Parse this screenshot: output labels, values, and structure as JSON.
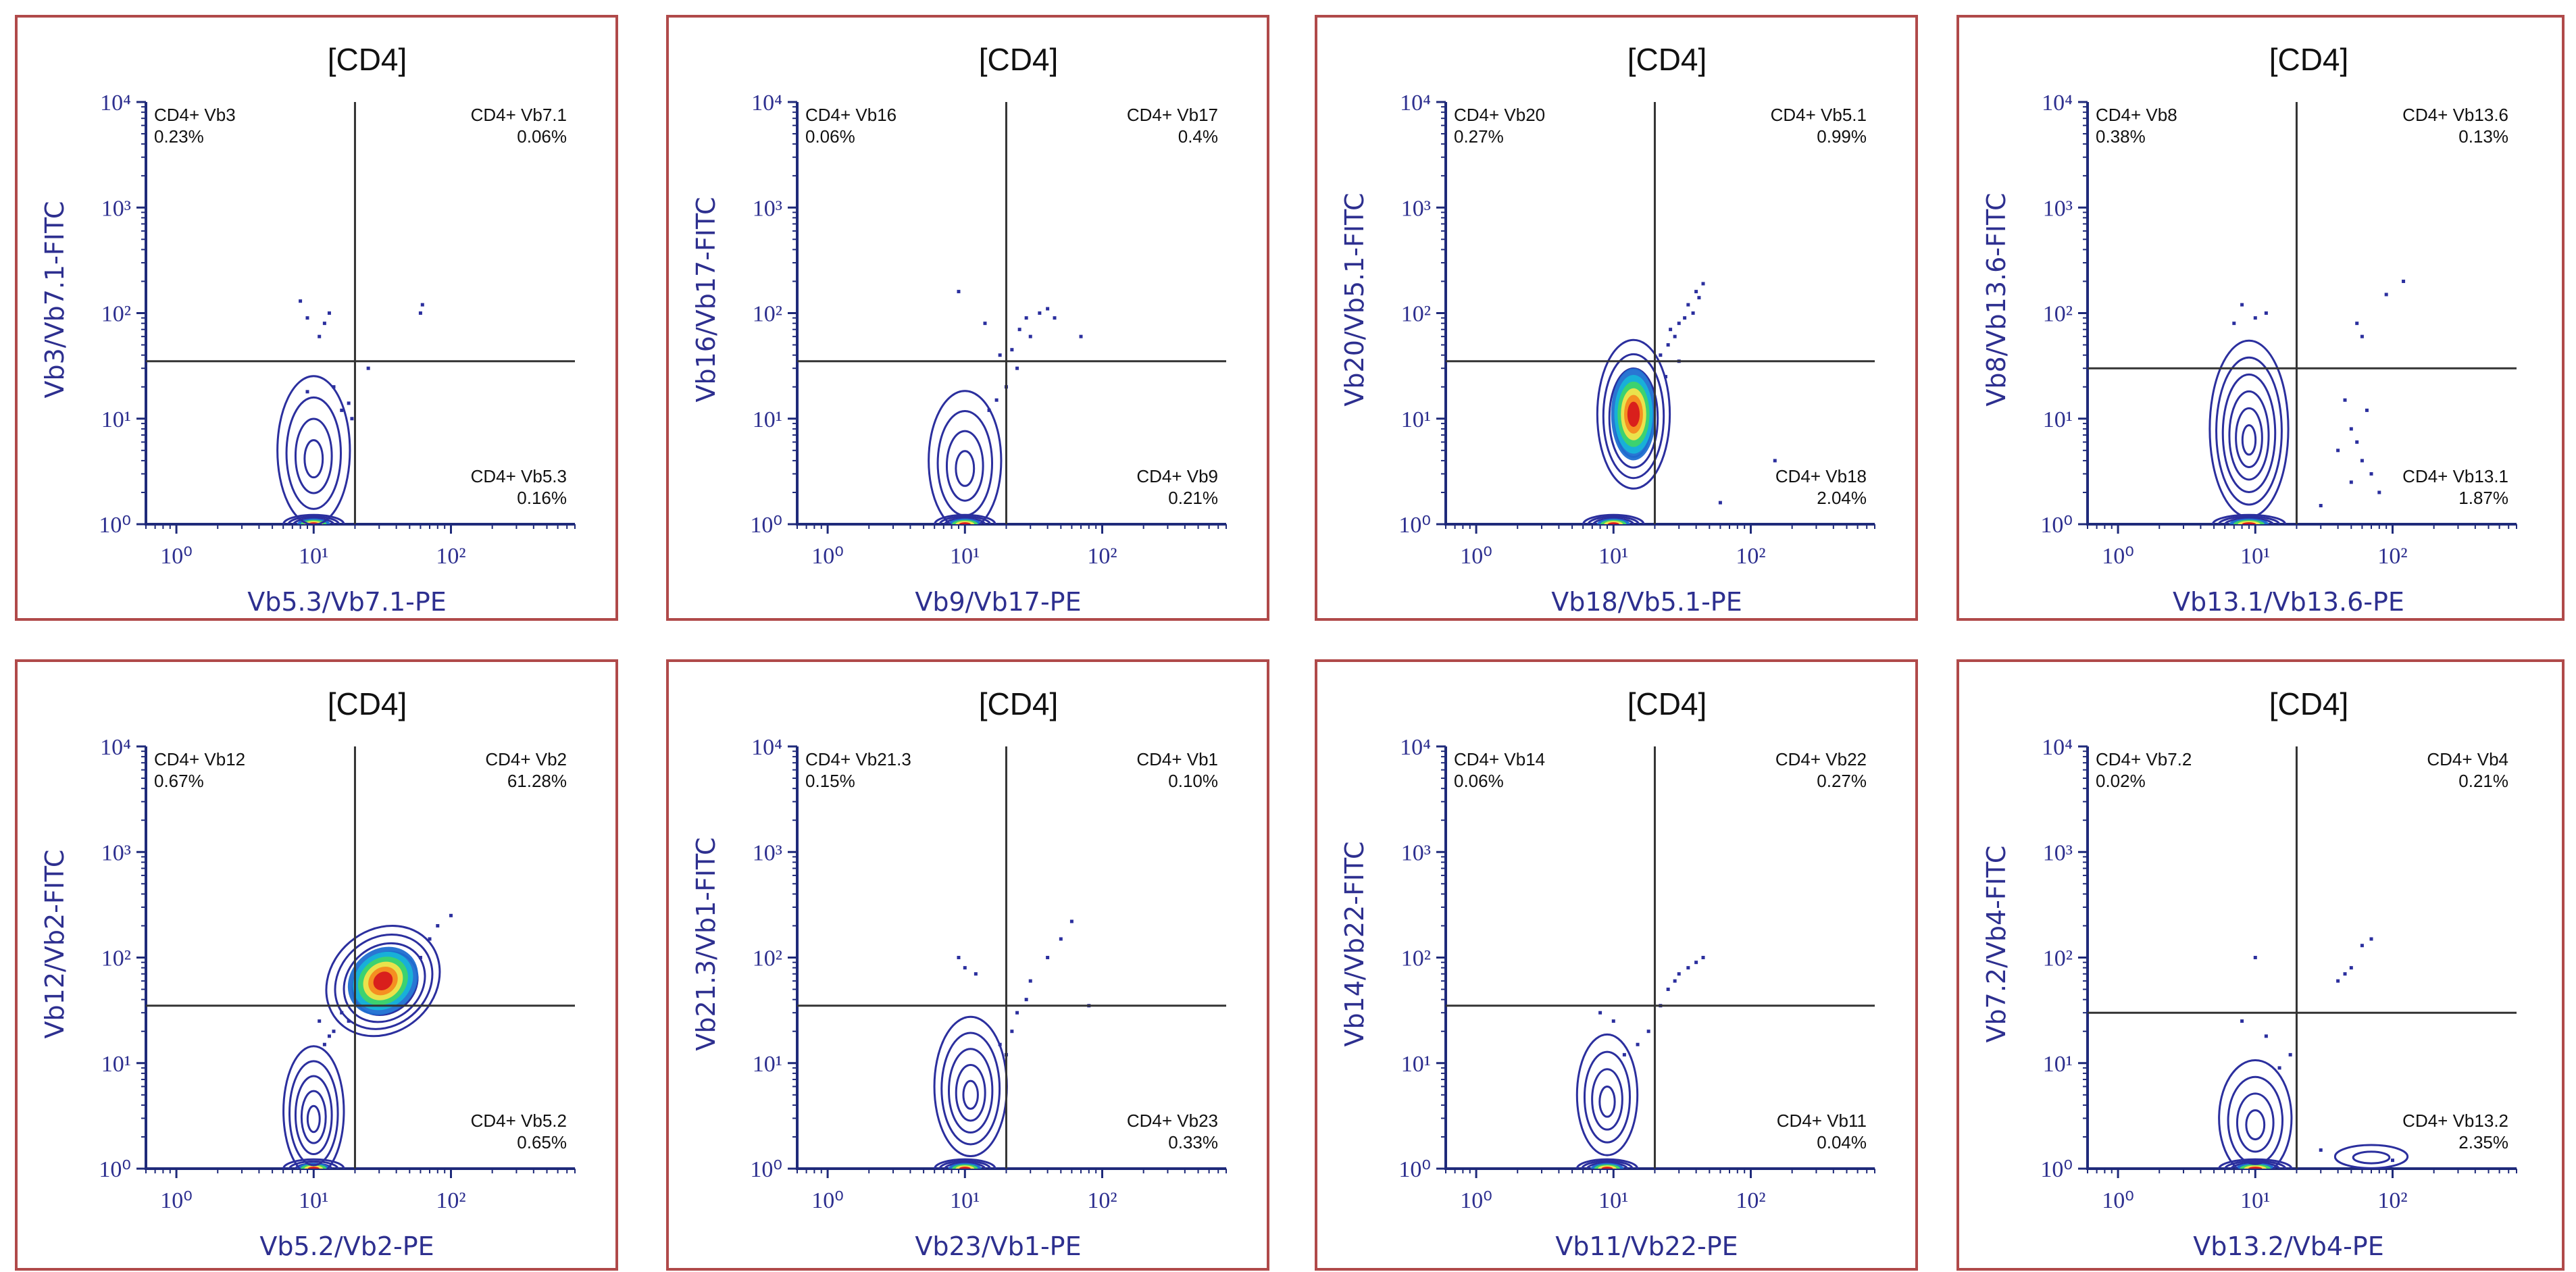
{
  "figure": {
    "colors": {
      "frame": "#b04a4a",
      "axis": "#1f2a7a",
      "axis_label": "#2d2f8f",
      "contour": "#2b2f9e",
      "quadrant_line": "#333333",
      "density_palette": [
        "#2b2f9e",
        "#1f6fd1",
        "#17b3d8",
        "#3ed46a",
        "#f3e34a",
        "#f58a1f",
        "#d7191c"
      ]
    }
  },
  "chart_data": [
    {
      "type": "contour",
      "title": "[CD4]",
      "xlabel": "Vb5.3/Vb7.1-PE",
      "ylabel": "Vb3/Vb7.1-FITC",
      "xscale": "log",
      "yscale": "log",
      "xlim": [
        0.6,
        800
      ],
      "ylim": [
        1,
        10000
      ],
      "xticks": [
        "10⁰",
        "10¹",
        "10²"
      ],
      "yticks": [
        "10⁰",
        "10¹",
        "10²",
        "10³",
        "10⁴"
      ],
      "gate": {
        "x": 20,
        "y": 35
      },
      "quadrants": {
        "ul": {
          "label": "CD4+ Vb3",
          "pct": "0.23%"
        },
        "ur": {
          "label": "CD4+ Vb7.1",
          "pct": "0.06%"
        },
        "lr": {
          "label": "CD4+ Vb5.3",
          "pct": "0.16%"
        }
      },
      "populations": [
        {
          "x": 10,
          "y": 1.0,
          "sx": 0.1,
          "sy": 0.04,
          "levels": 6
        },
        {
          "x": 10,
          "y": 5.0,
          "sx": 0.12,
          "sy": 0.32,
          "levels": 4
        }
      ],
      "dots": [
        [
          8,
          130
        ],
        [
          9,
          90
        ],
        [
          12,
          80
        ],
        [
          13,
          100
        ],
        [
          11,
          60
        ],
        [
          60,
          100
        ],
        [
          62,
          120
        ],
        [
          25,
          30
        ],
        [
          16,
          12
        ],
        [
          14,
          20
        ],
        [
          9,
          18
        ],
        [
          19,
          10
        ],
        [
          18,
          14
        ]
      ]
    },
    {
      "type": "contour",
      "title": "[CD4]",
      "xlabel": "Vb9/Vb17-PE",
      "ylabel": "Vb16/Vb17-FITC",
      "xscale": "log",
      "yscale": "log",
      "xlim": [
        0.6,
        800
      ],
      "ylim": [
        1,
        10000
      ],
      "xticks": [
        "10⁰",
        "10¹",
        "10²"
      ],
      "yticks": [
        "10⁰",
        "10¹",
        "10²",
        "10³",
        "10⁴"
      ],
      "gate": {
        "x": 20,
        "y": 35
      },
      "quadrants": {
        "ul": {
          "label": "CD4+ Vb16",
          "pct": "0.06%"
        },
        "ur": {
          "label": "CD4+ Vb17",
          "pct": "0.4%"
        },
        "lr": {
          "label": "CD4+ Vb9",
          "pct": "0.21%"
        }
      },
      "populations": [
        {
          "x": 10,
          "y": 1.0,
          "sx": 0.1,
          "sy": 0.04,
          "levels": 6
        },
        {
          "x": 10,
          "y": 4.0,
          "sx": 0.12,
          "sy": 0.3,
          "levels": 4
        }
      ],
      "dots": [
        [
          9,
          160
        ],
        [
          14,
          80
        ],
        [
          25,
          70
        ],
        [
          28,
          90
        ],
        [
          35,
          100
        ],
        [
          40,
          110
        ],
        [
          45,
          90
        ],
        [
          30,
          60
        ],
        [
          22,
          45
        ],
        [
          18,
          40
        ],
        [
          24,
          30
        ],
        [
          20,
          20
        ],
        [
          70,
          60
        ],
        [
          17,
          15
        ],
        [
          15,
          12
        ]
      ]
    },
    {
      "type": "contour",
      "title": "[CD4]",
      "xlabel": "Vb18/Vb5.1-PE",
      "ylabel": "Vb20/Vb5.1-FITC",
      "xscale": "log",
      "yscale": "log",
      "xlim": [
        0.6,
        800
      ],
      "ylim": [
        1,
        10000
      ],
      "xticks": [
        "10⁰",
        "10¹",
        "10²"
      ],
      "yticks": [
        "10⁰",
        "10¹",
        "10²",
        "10³",
        "10⁴"
      ],
      "gate": {
        "x": 20,
        "y": 35
      },
      "quadrants": {
        "ul": {
          "label": "CD4+ Vb20",
          "pct": "0.27%"
        },
        "ur": {
          "label": "CD4+ Vb5.1",
          "pct": "0.99%"
        },
        "lr": {
          "label": "CD4+ Vb18",
          "pct": "2.04%"
        }
      },
      "populations": [
        {
          "x": 10,
          "y": 1.0,
          "sx": 0.1,
          "sy": 0.04,
          "levels": 6
        },
        {
          "x": 14,
          "y": 11,
          "sx": 0.12,
          "sy": 0.32,
          "levels": 6,
          "hot": true
        }
      ],
      "dots": [
        [
          25,
          50
        ],
        [
          30,
          80
        ],
        [
          35,
          120
        ],
        [
          40,
          160
        ],
        [
          45,
          190
        ],
        [
          28,
          60
        ],
        [
          33,
          90
        ],
        [
          22,
          40
        ],
        [
          38,
          100
        ],
        [
          26,
          70
        ],
        [
          150,
          4
        ],
        [
          60,
          1.6
        ],
        [
          24,
          25
        ],
        [
          30,
          35
        ],
        [
          42,
          140
        ]
      ]
    },
    {
      "type": "contour",
      "title": "[CD4]",
      "xlabel": "Vb13.1/Vb13.6-PE",
      "ylabel": "Vb8/Vb13.6-FITC",
      "xscale": "log",
      "yscale": "log",
      "xlim": [
        0.6,
        800
      ],
      "ylim": [
        1,
        10000
      ],
      "xticks": [
        "10⁰",
        "10¹",
        "10²"
      ],
      "yticks": [
        "10⁰",
        "10¹",
        "10²",
        "10³",
        "10⁴"
      ],
      "gate": {
        "x": 20,
        "y": 30
      },
      "quadrants": {
        "ul": {
          "label": "CD4+ Vb8",
          "pct": "0.38%"
        },
        "ur": {
          "label": "CD4+ Vb13.6",
          "pct": "0.13%"
        },
        "lr": {
          "label": "CD4+ Vb13.1",
          "pct": "1.87%"
        }
      },
      "populations": [
        {
          "x": 9,
          "y": 1.0,
          "sx": 0.12,
          "sy": 0.04,
          "levels": 6
        },
        {
          "x": 9,
          "y": 8,
          "sx": 0.13,
          "sy": 0.38,
          "levels": 6
        }
      ],
      "dots": [
        [
          8,
          120
        ],
        [
          10,
          90
        ],
        [
          7,
          80
        ],
        [
          12,
          100
        ],
        [
          55,
          80
        ],
        [
          60,
          60
        ],
        [
          90,
          150
        ],
        [
          120,
          200
        ],
        [
          45,
          15
        ],
        [
          50,
          8
        ],
        [
          60,
          4
        ],
        [
          70,
          3
        ],
        [
          55,
          6
        ],
        [
          80,
          2
        ],
        [
          40,
          5
        ],
        [
          65,
          12
        ],
        [
          50,
          2.5
        ],
        [
          30,
          1.5
        ]
      ]
    },
    {
      "type": "contour",
      "title": "[CD4]",
      "xlabel": "Vb5.2/Vb2-PE",
      "ylabel": "Vb12/Vb2-FITC",
      "xscale": "log",
      "yscale": "log",
      "xlim": [
        0.6,
        800
      ],
      "ylim": [
        1,
        10000
      ],
      "xticks": [
        "10⁰",
        "10¹",
        "10²"
      ],
      "yticks": [
        "10⁰",
        "10¹",
        "10²",
        "10³",
        "10⁴"
      ],
      "gate": {
        "x": 20,
        "y": 35
      },
      "quadrants": {
        "ul": {
          "label": "CD4+ Vb12",
          "pct": "0.67%"
        },
        "ur": {
          "label": "CD4+ Vb2",
          "pct": "61.28%"
        },
        "lr": {
          "label": "CD4+ Vb5.2",
          "pct": "0.65%"
        }
      },
      "populations": [
        {
          "x": 10,
          "y": 1.0,
          "sx": 0.1,
          "sy": 0.04,
          "levels": 5
        },
        {
          "x": 10,
          "y": 3.5,
          "sx": 0.1,
          "sy": 0.28,
          "levels": 5
        },
        {
          "x": 32,
          "y": 60,
          "sx": 0.2,
          "sy": 0.22,
          "rot": -40,
          "levels": 7,
          "hot": true
        }
      ],
      "dots": [
        [
          12,
          15
        ],
        [
          14,
          20
        ],
        [
          11,
          25
        ],
        [
          13,
          18
        ],
        [
          80,
          200
        ],
        [
          100,
          250
        ],
        [
          70,
          150
        ],
        [
          18,
          25
        ],
        [
          16,
          30
        ],
        [
          60,
          100
        ]
      ]
    },
    {
      "type": "contour",
      "title": "[CD4]",
      "xlabel": "Vb23/Vb1-PE",
      "ylabel": "Vb21.3/Vb1-FITC",
      "xscale": "log",
      "yscale": "log",
      "xlim": [
        0.6,
        800
      ],
      "ylim": [
        1,
        10000
      ],
      "xticks": [
        "10⁰",
        "10¹",
        "10²"
      ],
      "yticks": [
        "10⁰",
        "10¹",
        "10²",
        "10³",
        "10⁴"
      ],
      "gate": {
        "x": 20,
        "y": 35
      },
      "quadrants": {
        "ul": {
          "label": "CD4+ Vb21.3",
          "pct": "0.15%"
        },
        "ur": {
          "label": "CD4+ Vb1",
          "pct": "0.10%"
        },
        "lr": {
          "label": "CD4+ Vb23",
          "pct": "0.33%"
        }
      },
      "populations": [
        {
          "x": 10,
          "y": 1.0,
          "sx": 0.1,
          "sy": 0.04,
          "levels": 6
        },
        {
          "x": 11,
          "y": 6,
          "sx": 0.12,
          "sy": 0.3,
          "levels": 5
        }
      ],
      "dots": [
        [
          9,
          100
        ],
        [
          10,
          80
        ],
        [
          12,
          70
        ],
        [
          30,
          60
        ],
        [
          40,
          100
        ],
        [
          50,
          150
        ],
        [
          60,
          220
        ],
        [
          28,
          40
        ],
        [
          24,
          30
        ],
        [
          22,
          20
        ],
        [
          80,
          35
        ],
        [
          18,
          15
        ],
        [
          20,
          12
        ]
      ]
    },
    {
      "type": "contour",
      "title": "[CD4]",
      "xlabel": "Vb11/Vb22-PE",
      "ylabel": "Vb14/Vb22-FITC",
      "xscale": "log",
      "yscale": "log",
      "xlim": [
        0.6,
        800
      ],
      "ylim": [
        1,
        10000
      ],
      "xticks": [
        "10⁰",
        "10¹",
        "10²"
      ],
      "yticks": [
        "10⁰",
        "10¹",
        "10²",
        "10³",
        "10⁴"
      ],
      "gate": {
        "x": 20,
        "y": 35
      },
      "quadrants": {
        "ul": {
          "label": "CD4+ Vb14",
          "pct": "0.06%"
        },
        "ur": {
          "label": "CD4+ Vb22",
          "pct": "0.27%"
        },
        "lr": {
          "label": "CD4+ Vb11",
          "pct": "0.04%"
        }
      },
      "populations": [
        {
          "x": 9,
          "y": 1.0,
          "sx": 0.1,
          "sy": 0.04,
          "levels": 6
        },
        {
          "x": 9,
          "y": 5,
          "sx": 0.1,
          "sy": 0.26,
          "levels": 4
        }
      ],
      "dots": [
        [
          8,
          30
        ],
        [
          10,
          25
        ],
        [
          25,
          50
        ],
        [
          30,
          70
        ],
        [
          35,
          80
        ],
        [
          40,
          90
        ],
        [
          45,
          100
        ],
        [
          22,
          35
        ],
        [
          28,
          60
        ],
        [
          18,
          20
        ],
        [
          15,
          15
        ],
        [
          12,
          12
        ]
      ]
    },
    {
      "type": "contour",
      "title": "[CD4]",
      "xlabel": "Vb13.2/Vb4-PE",
      "ylabel": "Vb7.2/Vb4-FITC",
      "xscale": "log",
      "yscale": "log",
      "xlim": [
        0.6,
        800
      ],
      "ylim": [
        1,
        10000
      ],
      "xticks": [
        "10⁰",
        "10¹",
        "10²"
      ],
      "yticks": [
        "10⁰",
        "10¹",
        "10²",
        "10³",
        "10⁴"
      ],
      "gate": {
        "x": 20,
        "y": 30
      },
      "quadrants": {
        "ul": {
          "label": "CD4+ Vb7.2",
          "pct": "0.02%"
        },
        "ur": {
          "label": "CD4+ Vb4",
          "pct": "0.21%"
        },
        "lr": {
          "label": "CD4+ Vb13.2",
          "pct": "2.35%"
        }
      },
      "populations": [
        {
          "x": 10,
          "y": 1.0,
          "sx": 0.12,
          "sy": 0.04,
          "levels": 6
        },
        {
          "x": 10,
          "y": 3,
          "sx": 0.12,
          "sy": 0.25,
          "levels": 4
        },
        {
          "x": 70,
          "y": 1.3,
          "sx": 0.12,
          "sy": 0.05,
          "levels": 2
        }
      ],
      "dots": [
        [
          10,
          100
        ],
        [
          8,
          25
        ],
        [
          12,
          18
        ],
        [
          40,
          60
        ],
        [
          50,
          80
        ],
        [
          60,
          130
        ],
        [
          70,
          150
        ],
        [
          45,
          70
        ],
        [
          30,
          1.5
        ],
        [
          100,
          1.2
        ],
        [
          18,
          12
        ],
        [
          15,
          9
        ]
      ]
    }
  ]
}
